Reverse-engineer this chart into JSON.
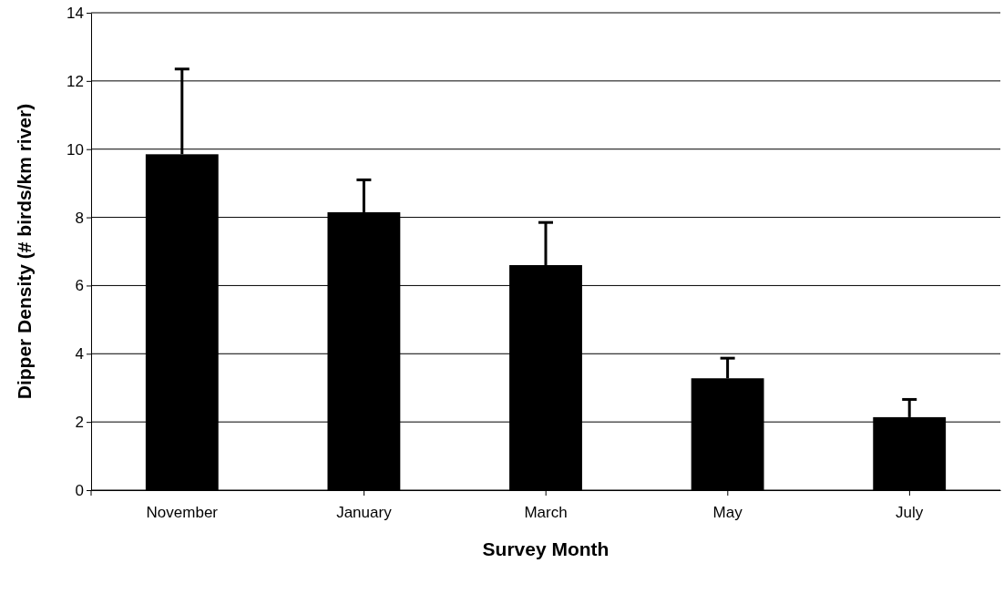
{
  "chart_data": {
    "type": "bar",
    "xlabel": "Survey Month",
    "ylabel": "Dipper Density (# birds/km river)",
    "categories": [
      "November",
      "January",
      "March",
      "May",
      "July"
    ],
    "values": [
      9.85,
      8.15,
      6.6,
      3.28,
      2.14
    ],
    "errors": [
      [
        9.85,
        12.35
      ],
      [
        8.15,
        9.1
      ],
      [
        6.6,
        7.85
      ],
      [
        3.28,
        3.87
      ],
      [
        2.14,
        2.66
      ]
    ],
    "color": "#000000",
    "ylim": [
      0,
      14
    ],
    "yticks": [
      0,
      2,
      4,
      6,
      8,
      10,
      12,
      14
    ],
    "grid": "y"
  }
}
